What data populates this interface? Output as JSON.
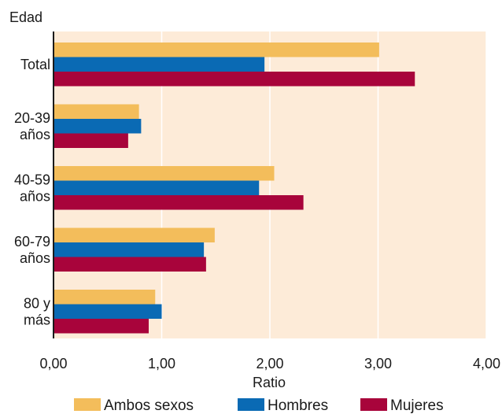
{
  "chart_data": {
    "type": "bar",
    "orientation": "horizontal",
    "ylabel": "Edad",
    "xlabel": "Ratio",
    "xlim": [
      0,
      4
    ],
    "xticks": [
      "0,00",
      "1,00",
      "2,00",
      "3,00",
      "4,00"
    ],
    "categories": [
      [
        "Total"
      ],
      [
        "20-39",
        "años"
      ],
      [
        "40-59",
        "años"
      ],
      [
        "60-79",
        "años"
      ],
      [
        "80 y",
        "más"
      ]
    ],
    "series": [
      {
        "name": "Ambos sexos",
        "color": "#f3bd5b",
        "values": [
          3.01,
          0.79,
          2.04,
          1.49,
          0.94
        ]
      },
      {
        "name": "Hombres",
        "color": "#0a6ab4",
        "values": [
          1.95,
          0.81,
          1.9,
          1.39,
          1.0
        ]
      },
      {
        "name": "Mujeres",
        "color": "#a8043b",
        "values": [
          3.34,
          0.69,
          2.31,
          1.41,
          0.88
        ]
      }
    ],
    "background": "#fdebd8",
    "grid": true,
    "legend": "bottom"
  }
}
